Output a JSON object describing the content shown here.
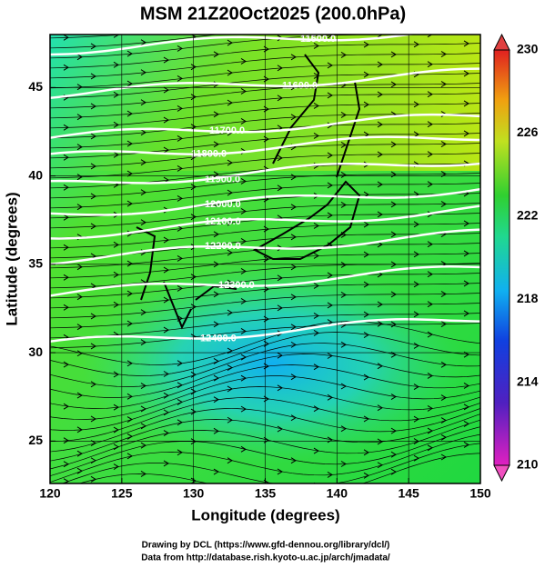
{
  "title": "MSM 21Z20Oct2025 (200.0hPa)",
  "x_axis": {
    "label": "Longitude (degrees)",
    "lim": [
      120,
      150
    ],
    "ticks": [
      120,
      125,
      130,
      135,
      140,
      145,
      150
    ]
  },
  "y_axis": {
    "label": "Latitude  (degrees)",
    "lim": [
      22.6,
      48
    ],
    "ticks": [
      25,
      30,
      35,
      40,
      45
    ]
  },
  "colorbar": {
    "lim": [
      210,
      230
    ],
    "ticks": [
      210,
      214,
      218,
      222,
      226,
      230
    ]
  },
  "contour_labels": [
    "11500.0",
    "11600.0",
    "11700.0",
    "11800.0",
    "11900.0",
    "12000.0",
    "12100.0",
    "12200.0",
    "12300.0",
    "12400.0"
  ],
  "footer": [
    "Drawing by DCL (https://www.gfd-dennou.org/library/dcl/)",
    "Data from http://database.rish.kyoto-u.ac.jp/arch/jmadata/"
  ]
}
